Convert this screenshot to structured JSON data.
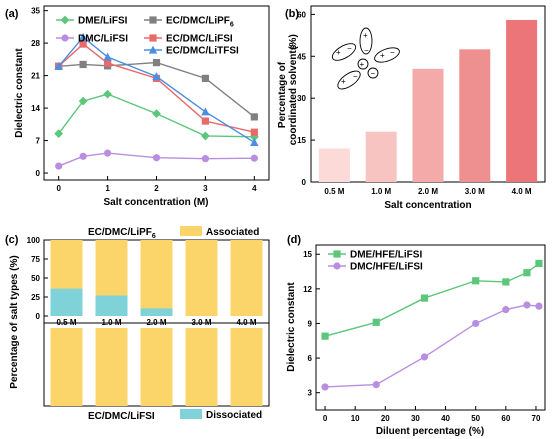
{
  "chart_data": [
    {
      "panel": "(a)",
      "type": "line",
      "xlabel": "Salt concentration (M)",
      "ylabel": "Dielectric constant",
      "xlim": [
        -0.3,
        4.3
      ],
      "ylim": [
        -1.5,
        36
      ],
      "xticks": [
        "0",
        "1",
        "2",
        "3",
        "4"
      ],
      "yticks": [
        "0",
        "7",
        "14",
        "21",
        "28",
        "35"
      ],
      "series": [
        {
          "name": "DME/LiFSI",
          "color": "#5cc77a",
          "marker": "diamond",
          "x": [
            0,
            0.5,
            1,
            2,
            3,
            4
          ],
          "y": [
            8.5,
            15.5,
            17,
            12.8,
            8,
            7.8
          ]
        },
        {
          "name": "DMC/LiFSI",
          "color": "#b98ee0",
          "marker": "circle",
          "x": [
            0,
            0.5,
            1,
            2,
            3,
            4
          ],
          "y": [
            1.5,
            3.6,
            4.3,
            3.3,
            3.1,
            3.2
          ]
        },
        {
          "name": "EC/DMC/LiPF6",
          "color": "#808080",
          "marker": "square",
          "x": [
            0,
            0.5,
            1,
            2,
            3,
            4
          ],
          "y": [
            23,
            23.4,
            23.1,
            23.8,
            20.4,
            12.1
          ]
        },
        {
          "name": "EC/DMC/LiFSI",
          "color": "#e96a6a",
          "marker": "square",
          "x": [
            0,
            0.5,
            1,
            2,
            3,
            4
          ],
          "y": [
            23,
            27.8,
            23.7,
            20.4,
            11.2,
            8.8
          ]
        },
        {
          "name": "EC/DMC/LiTFSI",
          "color": "#4a8fe0",
          "marker": "triangle",
          "x": [
            0,
            0.5,
            1,
            2,
            3,
            4
          ],
          "y": [
            23,
            29.3,
            25,
            20.8,
            13.2,
            6.6
          ]
        }
      ],
      "legend_labels": [
        "DME/LiFSI",
        "DMC/LiFSI",
        "EC/DMC/LiPF",
        "EC/DMC/LiFSI",
        "EC/DMC/LiTFSI"
      ],
      "legend_subscript": "6"
    },
    {
      "panel": "(b)",
      "type": "bar",
      "xlabel": "Salt concentration",
      "ylabel_line1": "Percentage of",
      "ylabel_line2": "coordinated solvents",
      "ylabel_unit": "(%)",
      "ylim": [
        0,
        63
      ],
      "yticks": [
        "0",
        "15",
        "30",
        "45",
        "60"
      ],
      "categories": [
        "0.5 M",
        "1.0 M",
        "2.0 M",
        "3.0 M",
        "4.0 M"
      ],
      "values": [
        12,
        18,
        40.5,
        47.5,
        58
      ],
      "colors": [
        "#fbdad7",
        "#f8c4c2",
        "#f3aaa9",
        "#ef9090",
        "#ec7579"
      ]
    },
    {
      "panel": "(c)",
      "type": "bar",
      "stacked": true,
      "ylabel": "Percentage of salt types (%)",
      "yticks": [
        "0",
        "25",
        "50",
        "75",
        "100"
      ],
      "categories": [
        "0.5 M",
        "1.0 M",
        "2.0 M",
        "3.0 M",
        "4.0 M"
      ],
      "top_title": "EC/DMC/LiPF",
      "top_title_sub": "6",
      "bottom_title": "EC/DMC/LiFSI",
      "legend_associated": "Associated",
      "legend_dissociated": "Dissociated",
      "associated_color": "#fcd56a",
      "dissociated_color": "#7fd2d8",
      "top_dissociated": [
        36,
        27,
        10,
        0,
        0
      ],
      "bottom_dissociated": [
        0,
        0,
        0,
        0,
        0
      ]
    },
    {
      "panel": "(d)",
      "type": "line",
      "xlabel": "Diluent percentage (%)",
      "ylabel": "Dielectric constant",
      "xlim": [
        -3,
        73
      ],
      "ylim": [
        1.5,
        15.8
      ],
      "xticks": [
        "0",
        "10",
        "20",
        "30",
        "40",
        "50",
        "60",
        "70"
      ],
      "yticks": [
        "3",
        "6",
        "9",
        "12",
        "15"
      ],
      "series": [
        {
          "name": "DME/HFE/LiFSI",
          "color": "#5cc77a",
          "marker": "square",
          "x": [
            0,
            17,
            33,
            50,
            60,
            67,
            71
          ],
          "y": [
            7.9,
            9.1,
            11.2,
            12.7,
            12.6,
            13.4,
            14.2
          ]
        },
        {
          "name": "DMC/HFE/LiFSI",
          "color": "#b98ee0",
          "marker": "circle",
          "x": [
            0,
            17,
            33,
            50,
            60,
            67,
            71
          ],
          "y": [
            3.5,
            3.7,
            6.1,
            9,
            10.2,
            10.6,
            10.5
          ]
        }
      ]
    }
  ]
}
